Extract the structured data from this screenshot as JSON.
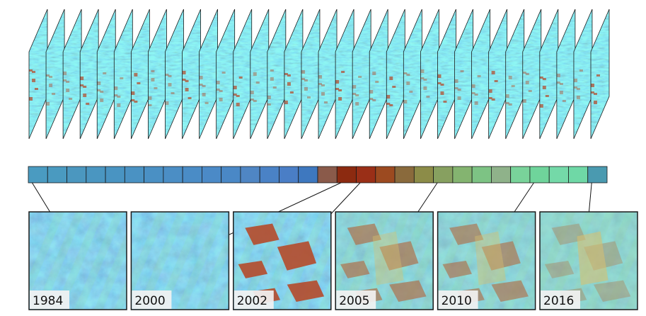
{
  "colors": {
    "frame_stroke": "#1a1a1a",
    "slice_base": "#5fbfae",
    "disturbance_red": "#b54a2a",
    "undisturbed_blue": "#4d8fc4",
    "label_bg": "#f2f2f2"
  },
  "timeline": {
    "segments": [
      "#4a9bc1",
      "#4a9ac0",
      "#4b97bf",
      "#4a96c1",
      "#4994c2",
      "#4a92c3",
      "#4a90c4",
      "#4b8ec5",
      "#4a8cc6",
      "#4b8ac7",
      "#4a88c6",
      "#4f86c4",
      "#4a82c6",
      "#4a7ec6",
      "#3e78bf",
      "#8a5a4a",
      "#8c2a10",
      "#9a2f17",
      "#9c4a20",
      "#8a6a3c",
      "#8c8c48",
      "#87a060",
      "#84b470",
      "#7dc384",
      "#8fb28a",
      "#79d39a",
      "#6fd49b",
      "#74d9a8",
      "#6fd8a6",
      "#4a9ab0"
    ]
  },
  "stack": {
    "slice_count": 34
  },
  "panels": [
    {
      "year": "1984",
      "name": "panel-1984",
      "disturbance": 0.0,
      "recovery": 0.0
    },
    {
      "year": "2000",
      "name": "panel-2000",
      "disturbance": 0.0,
      "recovery": 0.0
    },
    {
      "year": "2002",
      "name": "panel-2002",
      "disturbance": 1.0,
      "recovery": 0.0
    },
    {
      "year": "2005",
      "name": "panel-2005",
      "disturbance": 0.6,
      "recovery": 0.4
    },
    {
      "year": "2010",
      "name": "panel-2010",
      "disturbance": 0.55,
      "recovery": 0.5
    },
    {
      "year": "2016",
      "name": "panel-2016",
      "disturbance": 0.12,
      "recovery": 0.9
    }
  ]
}
